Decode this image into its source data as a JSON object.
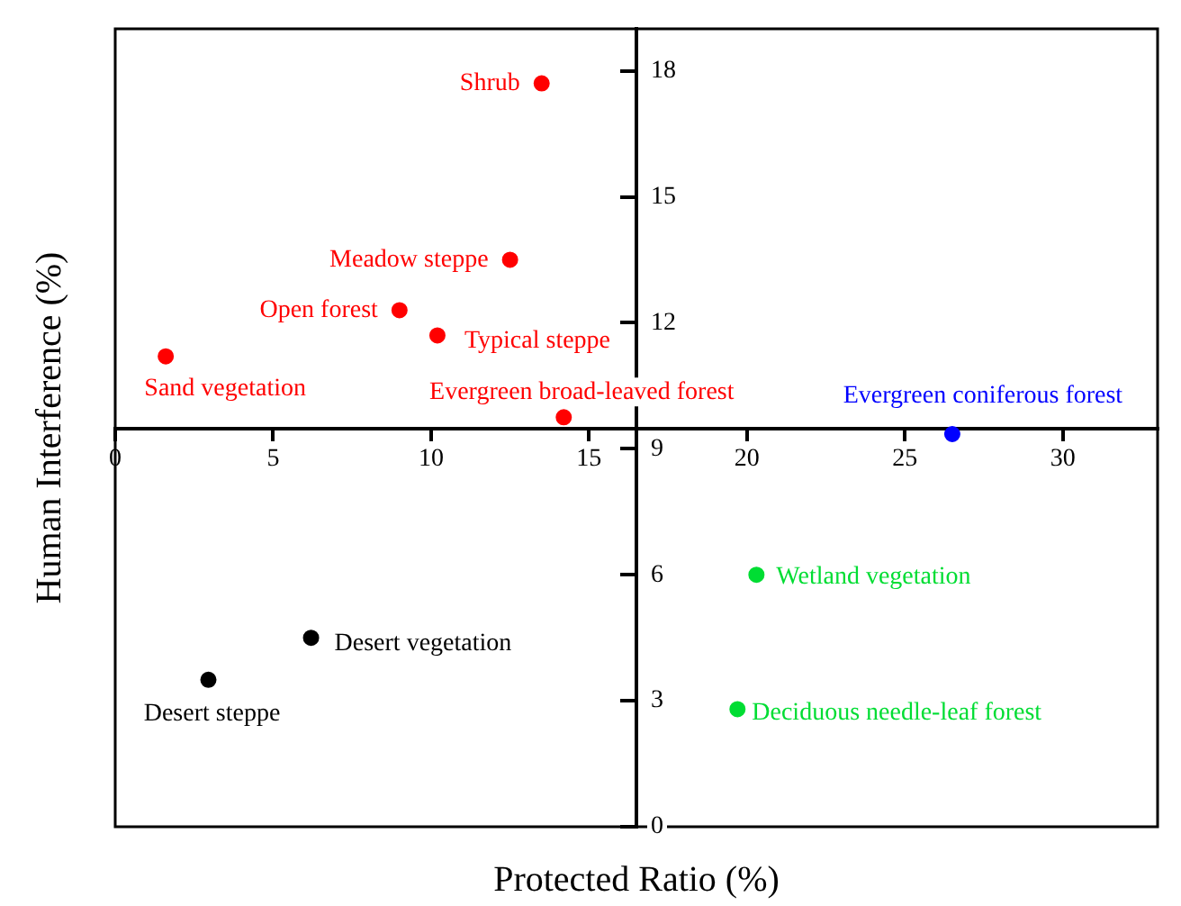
{
  "chart_data": {
    "type": "scatter",
    "xlabel": "Protected Ratio (%)",
    "ylabel": "Human Interference (%)",
    "xlim": [
      0,
      33
    ],
    "xticks": [
      0,
      5,
      10,
      15,
      20,
      25,
      30
    ],
    "ylim": [
      0,
      19
    ],
    "yticks": [
      0,
      3,
      6,
      9,
      12,
      15,
      18
    ],
    "grid": false,
    "legend": false,
    "marker": "circle",
    "series": [
      {
        "name": "Shrub",
        "color": "#ff0000",
        "x": [
          13.5
        ],
        "values": [
          17.7
        ]
      },
      {
        "name": "Meadow steppe",
        "color": "#ff0000",
        "x": [
          12.5
        ],
        "values": [
          13.5
        ]
      },
      {
        "name": "Open forest",
        "color": "#ff0000",
        "x": [
          9.0
        ],
        "values": [
          12.3
        ]
      },
      {
        "name": "Typical steppe",
        "color": "#ff0000",
        "x": [
          10.2
        ],
        "values": [
          11.7
        ]
      },
      {
        "name": "Sand vegetation",
        "color": "#ff0000",
        "x": [
          1.6
        ],
        "values": [
          11.2
        ]
      },
      {
        "name": "Evergreen broad-leaved forest",
        "color": "#ff0000",
        "x": [
          14.2
        ],
        "values": [
          9.75
        ]
      },
      {
        "name": "Evergreen coniferous forest",
        "color": "#0000ff",
        "x": [
          26.5
        ],
        "values": [
          9.35
        ]
      },
      {
        "name": "Wetland vegetation",
        "color": "#00dd33",
        "x": [
          20.3
        ],
        "values": [
          6.0
        ]
      },
      {
        "name": "Deciduous needle-leaf forest",
        "color": "#00dd33",
        "x": [
          19.7
        ],
        "values": [
          2.8
        ]
      },
      {
        "name": "Desert vegetation",
        "color": "#000000",
        "x": [
          6.2
        ],
        "values": [
          4.5
        ]
      },
      {
        "name": "Desert steppe",
        "color": "#000000",
        "x": [
          2.95
        ],
        "values": [
          3.5
        ]
      }
    ]
  }
}
